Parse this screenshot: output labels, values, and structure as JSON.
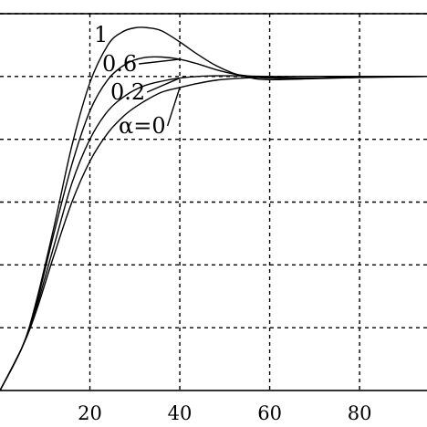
{
  "chart_data": {
    "type": "line",
    "title": "",
    "xlabel": "",
    "ylabel": "",
    "xlim": [
      0,
      95
    ],
    "ylim": [
      0,
      1.2
    ],
    "x_ticks": [
      20,
      40,
      60,
      80
    ],
    "x_tick_labels": [
      "20",
      "40",
      "60",
      "80"
    ],
    "y_gridlines": [
      0.2,
      0.4,
      0.6,
      0.8,
      1.0,
      1.2
    ],
    "grid": true,
    "series": [
      {
        "name": "1",
        "x": [
          0,
          5,
          8,
          12,
          16,
          20,
          24,
          27,
          30,
          33,
          36,
          40,
          44,
          48,
          52,
          56,
          60,
          70,
          80,
          95
        ],
        "y": [
          0.0,
          0.14,
          0.28,
          0.52,
          0.78,
          0.98,
          1.1,
          1.14,
          1.155,
          1.155,
          1.145,
          1.11,
          1.07,
          1.035,
          1.01,
          0.995,
          0.99,
          0.993,
          0.997,
          1.0
        ]
      },
      {
        "name": "0.6",
        "x": [
          0,
          5,
          8,
          12,
          16,
          20,
          24,
          28,
          32,
          36,
          40,
          44,
          48,
          52,
          56,
          60,
          70,
          80,
          95
        ],
        "y": [
          0.0,
          0.14,
          0.27,
          0.5,
          0.72,
          0.89,
          0.99,
          1.04,
          1.06,
          1.062,
          1.055,
          1.04,
          1.022,
          1.008,
          1.0,
          0.995,
          0.995,
          0.998,
          1.0
        ]
      },
      {
        "name": "0.2",
        "x": [
          0,
          5,
          8,
          12,
          16,
          20,
          24,
          28,
          32,
          36,
          40,
          44,
          48,
          52,
          56,
          60,
          70,
          80,
          95
        ],
        "y": [
          0.0,
          0.14,
          0.26,
          0.46,
          0.66,
          0.8,
          0.89,
          0.94,
          0.97,
          0.985,
          0.995,
          1.0,
          1.002,
          1.002,
          1.001,
          1.0,
          1.0,
          1.0,
          1.0
        ]
      },
      {
        "name": "α=0",
        "x": [
          0,
          5,
          8,
          12,
          16,
          20,
          24,
          28,
          32,
          36,
          40,
          44,
          48,
          52,
          56,
          60,
          70,
          80,
          95
        ],
        "y": [
          0.0,
          0.14,
          0.25,
          0.43,
          0.6,
          0.73,
          0.82,
          0.88,
          0.92,
          0.95,
          0.965,
          0.978,
          0.988,
          0.993,
          0.996,
          0.998,
          1.0,
          1.0,
          1.0
        ]
      }
    ]
  }
}
